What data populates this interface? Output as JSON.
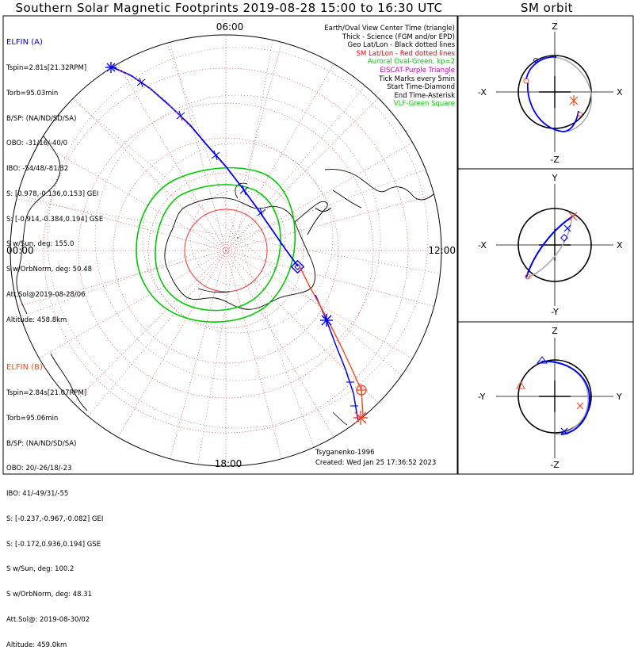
{
  "title": "Southern Solar Magnetic Footprints 2019-08-28 15:00 to 16:30 UTC",
  "orbit_title": "SM orbit",
  "mlt_labels": {
    "top": "06:00",
    "left": "00:00",
    "right": "12:00",
    "bottom": "18:00"
  },
  "legend": [
    {
      "text": "Earth/Oval View Center Time (triangle)",
      "color": "#000000"
    },
    {
      "text": "Thick - Science (FGM and/or EPD)",
      "color": "#000000"
    },
    {
      "text": "Geo Lat/Lon - Black dotted lines",
      "color": "#000000"
    },
    {
      "text": "SM Lat/Lon - Red dotted lines",
      "color": "#ff0000"
    },
    {
      "text": "Auroral Oval-Green, kp=2",
      "color": "#00cc00"
    },
    {
      "text": "EISCAT-Purple Triangle",
      "color": "#cc00cc"
    },
    {
      "text": "Tick Marks every 5min",
      "color": "#000000"
    },
    {
      "text": "Start Time-Diamond",
      "color": "#000000"
    },
    {
      "text": "End Time-Asterisk",
      "color": "#000000"
    },
    {
      "text": "VLF-Green Square",
      "color": "#00cc00"
    }
  ],
  "elfin_a": {
    "name": "ELFIN (A)",
    "color": "#0000ff",
    "lines": [
      "Tspin=2.81s[21.32RPM]",
      "Torb=95.03min",
      "B/SP: (NA/ND/SD/SA)",
      "OBO: -31/16/-40/0",
      "IBO: -54/48/-81/32",
      "S: [0.978,-0.136,0.153] GEI",
      "S: [-0.914,-0.384,0.194] GSE",
      "S w/Sun, deg: 155.0",
      "S w/OrbNorm, deg: 50.48",
      "Att.Sol@2019-08-28/06",
      "Altitude: 458.8km"
    ]
  },
  "elfin_b": {
    "name": "ELFIN (B)",
    "color": "#ff4422",
    "lines": [
      "Tspin=2.84s[21.07RPM]",
      "Torb=95.06min",
      "B/SP: (NA/ND/SD/SA)",
      "OBO: 20/-26/18/-23",
      "IBO: 41/-49/31/-55",
      "S: [-0.237,-0.967,-0.082] GEI",
      "S: [-0.172,0.936,0.194] GSE",
      "S w/Sun, deg: 100.2",
      "S w/OrbNorm, deg: 48.31",
      "Att.Sol@: 2019-08-30/02",
      "Altitude: 459.0km"
    ]
  },
  "footer": {
    "author": "Tsyganenko-1996",
    "created": "Created: Wed Jan 25 17:36:52 2023"
  },
  "orbit_panels": [
    {
      "top": "Z",
      "bottom": "-Z",
      "left": "-X",
      "right": "X"
    },
    {
      "top": "Y",
      "bottom": "-Y",
      "left": "-X",
      "right": "X"
    },
    {
      "top": "Z",
      "bottom": "-Z",
      "left": "-Y",
      "right": "Y"
    }
  ],
  "colors": {
    "blue": "#0000ff",
    "red": "#ff3300",
    "green": "#00cc00",
    "grid": "#ff3333"
  }
}
